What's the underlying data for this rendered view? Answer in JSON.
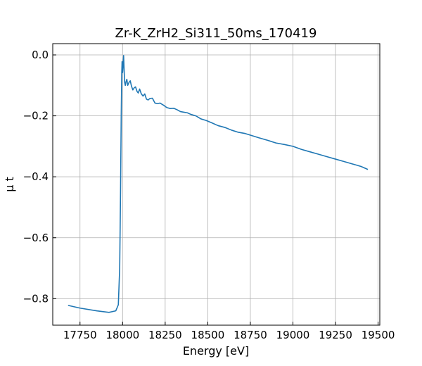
{
  "chart_data": {
    "type": "line",
    "title": "Zr-K_ZrH2_Si311_50ms_170419",
    "xlabel": "Energy [eV]",
    "ylabel": "μ t",
    "xlim": [
      17590,
      19510
    ],
    "ylim": [
      -0.887,
      0.037
    ],
    "xticks": [
      17750,
      18000,
      18250,
      18500,
      18750,
      19000,
      19250,
      19500
    ],
    "xtick_labels": [
      "17750",
      "18000",
      "18250",
      "18500",
      "18750",
      "19000",
      "19250",
      "19500"
    ],
    "yticks": [
      0.0,
      -0.2,
      -0.4,
      -0.6,
      -0.8
    ],
    "ytick_labels": [
      "0.0",
      "−0.2",
      "−0.4",
      "−0.6",
      "−0.8"
    ],
    "grid": true,
    "legend": "none",
    "colors": {
      "series": "#1f77b4",
      "grid": "#b0b0b0",
      "axes": "#000000"
    },
    "series": [
      {
        "x": [
          17680,
          17750,
          17850,
          17920,
          17960,
          17975,
          17983,
          17988,
          17992,
          17995,
          17997,
          18000,
          18003,
          18006,
          18009,
          18012,
          18016,
          18020,
          18025,
          18030,
          18038,
          18045,
          18052,
          18060,
          18068,
          18076,
          18085,
          18092,
          18100,
          18110,
          18120,
          18130,
          18140,
          18150,
          18160,
          18175,
          18190,
          18205,
          18220,
          18240,
          18260,
          18280,
          18300,
          18320,
          18340,
          18360,
          18380,
          18400,
          18430,
          18460,
          18490,
          18520,
          18560,
          18600,
          18640,
          18680,
          18720,
          18760,
          18800,
          18850,
          18900,
          18950,
          19000,
          19050,
          19100,
          19150,
          19200,
          19250,
          19300,
          19350,
          19400,
          19440
        ],
        "y": [
          -0.822,
          -0.831,
          -0.84,
          -0.845,
          -0.84,
          -0.82,
          -0.7,
          -0.45,
          -0.2,
          -0.06,
          -0.022,
          -0.058,
          -0.03,
          -0.002,
          -0.05,
          -0.09,
          -0.1,
          -0.088,
          -0.08,
          -0.1,
          -0.09,
          -0.085,
          -0.102,
          -0.115,
          -0.108,
          -0.105,
          -0.12,
          -0.125,
          -0.112,
          -0.128,
          -0.135,
          -0.128,
          -0.145,
          -0.148,
          -0.143,
          -0.142,
          -0.158,
          -0.16,
          -0.158,
          -0.165,
          -0.173,
          -0.176,
          -0.175,
          -0.18,
          -0.186,
          -0.188,
          -0.19,
          -0.195,
          -0.2,
          -0.21,
          -0.215,
          -0.222,
          -0.232,
          -0.238,
          -0.247,
          -0.254,
          -0.258,
          -0.265,
          -0.272,
          -0.28,
          -0.289,
          -0.294,
          -0.3,
          -0.31,
          -0.318,
          -0.326,
          -0.334,
          -0.342,
          -0.35,
          -0.358,
          -0.366,
          -0.376
        ]
      }
    ]
  }
}
